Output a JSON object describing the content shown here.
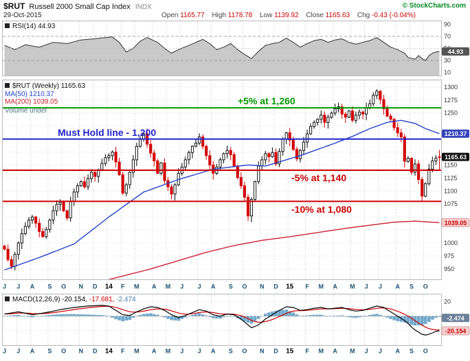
{
  "header": {
    "symbol": "$RUT",
    "name": "Russell 2000 Small Cap Index",
    "exchange": "INDX",
    "copyright": "© StockCharts.com",
    "date": "29-Oct-2015",
    "open_label": "Open",
    "open": "1165.77",
    "high_label": "High",
    "high": "1178.78",
    "low_label": "Low",
    "low": "1139.92",
    "close_label": "Close",
    "close": "1165.63",
    "chg_label": "Chg",
    "chg": "-0.43 (-0.04%)"
  },
  "legends": {
    "rsi": "RSI(14) 44.93",
    "price": "$RUT (Weekly) 1165.63",
    "ma50": "MA(50) 1210.37",
    "ma200": "MA(200) 1039.05",
    "volume": "Volume undef",
    "macd": "MACD(12,26,9)",
    "macd_val": "-20.154,",
    "signal_val": "-17.681,",
    "hist_val": "-2.474"
  },
  "annotations": {
    "plus5": "+5% at 1,260",
    "musthold": "Must Hold line - 1,200",
    "minus5": "-5% at 1,140",
    "minus10": "-10% at 1,080"
  },
  "colors": {
    "up": "#000000",
    "down": "#d40000",
    "ma50": "#2244cc",
    "ma200": "#cc2233",
    "rsi_fill": "#c9c9c9",
    "rsi_line": "#333333",
    "hist": "#6fa8cc",
    "macd_line": "#000000",
    "signal_line": "#cc0000",
    "grid": "#d4d4d4",
    "month_label": "#1a5276"
  },
  "axis": {
    "price_ticks": [
      1300,
      1275,
      1250,
      1150,
      1125,
      1100,
      1075,
      1000,
      975,
      950
    ],
    "price_grid": [
      950,
      975,
      1000,
      1025,
      1050,
      1075,
      1100,
      1125,
      1150,
      1175,
      1200,
      1225,
      1250,
      1275,
      1300
    ],
    "price_badges": [
      {
        "label": "1210.37",
        "value": 1210.37,
        "bg": "#3344bb",
        "fg": "#ffffff"
      },
      {
        "label": "1165.63",
        "value": 1165.63,
        "bg": "#111111",
        "fg": "#ffffff"
      },
      {
        "label": "1039.05",
        "value": 1039.05,
        "bg": "#f8d0d0",
        "fg": "#cc0000",
        "stroke": "#cc8888"
      }
    ],
    "rsi_ticks": [
      90,
      70,
      50,
      30,
      10
    ],
    "rsi_badge": {
      "label": "44.93",
      "value": 44.93,
      "bg": "#555555",
      "fg": "#ffffff"
    },
    "macd_ticks": [
      20,
      0,
      -20
    ],
    "macd_badges": [
      {
        "label": "-2.474",
        "value": -2.474,
        "bg": "#6b8099",
        "fg": "#ffffff"
      },
      {
        "label": "-20.154",
        "value": -20.154,
        "bg": "#f8d0d0",
        "fg": "#cc0000",
        "stroke": "#cc8888"
      }
    ]
  },
  "months": [
    {
      "l": "J",
      "i": 0
    },
    {
      "l": "J",
      "i": 4
    },
    {
      "l": "A",
      "i": 8
    },
    {
      "l": "S",
      "i": 13
    },
    {
      "l": "O",
      "i": 17
    },
    {
      "l": "N",
      "i": 22
    },
    {
      "l": "D",
      "i": 26
    },
    {
      "l": "14",
      "i": 30,
      "y": 1
    },
    {
      "l": "F",
      "i": 34
    },
    {
      "l": "M",
      "i": 38
    },
    {
      "l": "A",
      "i": 43
    },
    {
      "l": "M",
      "i": 47
    },
    {
      "l": "J",
      "i": 51
    },
    {
      "l": "J",
      "i": 56
    },
    {
      "l": "A",
      "i": 60
    },
    {
      "l": "S",
      "i": 65
    },
    {
      "l": "O",
      "i": 69
    },
    {
      "l": "N",
      "i": 74
    },
    {
      "l": "D",
      "i": 78
    },
    {
      "l": "15",
      "i": 82,
      "y": 1
    },
    {
      "l": "F",
      "i": 87
    },
    {
      "l": "M",
      "i": 91
    },
    {
      "l": "A",
      "i": 95
    },
    {
      "l": "M",
      "i": 100
    },
    {
      "l": "J",
      "i": 104
    },
    {
      "l": "J",
      "i": 108
    },
    {
      "l": "A",
      "i": 113
    },
    {
      "l": "S",
      "i": 117
    },
    {
      "l": "O",
      "i": 121
    }
  ],
  "chart_data": [
    {
      "type": "line",
      "title": "RSI(14)",
      "panel": "rsi",
      "ylim": [
        5,
        95
      ],
      "last": 44.93,
      "levels": [
        70,
        50,
        30
      ],
      "points": [
        [
          0,
          55
        ],
        [
          3,
          48
        ],
        [
          6,
          56
        ],
        [
          10,
          52
        ],
        [
          14,
          60
        ],
        [
          18,
          58
        ],
        [
          22,
          64
        ],
        [
          26,
          66
        ],
        [
          29,
          68
        ],
        [
          31,
          69
        ],
        [
          33,
          60
        ],
        [
          35,
          44
        ],
        [
          37,
          50
        ],
        [
          39,
          62
        ],
        [
          41,
          68
        ],
        [
          44,
          60
        ],
        [
          46,
          50
        ],
        [
          48,
          42
        ],
        [
          50,
          48
        ],
        [
          53,
          55
        ],
        [
          55,
          60
        ],
        [
          57,
          65
        ],
        [
          59,
          58
        ],
        [
          61,
          48
        ],
        [
          63,
          52
        ],
        [
          65,
          58
        ],
        [
          67,
          48
        ],
        [
          69,
          40
        ],
        [
          71,
          33
        ],
        [
          73,
          45
        ],
        [
          75,
          55
        ],
        [
          77,
          58
        ],
        [
          79,
          60
        ],
        [
          81,
          67
        ],
        [
          83,
          60
        ],
        [
          85,
          52
        ],
        [
          87,
          58
        ],
        [
          89,
          63
        ],
        [
          91,
          65
        ],
        [
          93,
          60
        ],
        [
          95,
          64
        ],
        [
          97,
          66
        ],
        [
          99,
          60
        ],
        [
          101,
          57
        ],
        [
          103,
          60
        ],
        [
          105,
          63
        ],
        [
          107,
          68
        ],
        [
          109,
          60
        ],
        [
          111,
          52
        ],
        [
          113,
          48
        ],
        [
          115,
          42
        ],
        [
          116,
          35
        ],
        [
          118,
          32
        ],
        [
          119,
          38
        ],
        [
          120,
          33
        ],
        [
          121,
          30
        ],
        [
          122,
          38
        ],
        [
          123,
          42
        ],
        [
          124,
          44
        ],
        [
          125,
          44.93
        ]
      ]
    },
    {
      "type": "candlestick",
      "title": "$RUT (Weekly)",
      "panel": "price",
      "ylim": [
        930,
        1313
      ],
      "closes": [
        988,
        968,
        955,
        978,
        1000,
        1018,
        1032,
        1044,
        1050,
        1038,
        1022,
        1012,
        1026,
        1044,
        1062,
        1074,
        1078,
        1062,
        1048,
        1080,
        1098,
        1110,
        1118,
        1108,
        1124,
        1136,
        1128,
        1141,
        1153,
        1164,
        1168,
        1175,
        1156,
        1131,
        1096,
        1112,
        1136,
        1160,
        1186,
        1200,
        1210,
        1190,
        1173,
        1158,
        1134,
        1154,
        1120,
        1108,
        1094,
        1112,
        1134,
        1146,
        1160,
        1174,
        1186,
        1192,
        1204,
        1186,
        1168,
        1150,
        1134,
        1146,
        1160,
        1172,
        1178,
        1170,
        1148,
        1126,
        1110,
        1088,
        1052,
        1084,
        1118,
        1148,
        1160,
        1172,
        1166,
        1174,
        1152,
        1176,
        1200,
        1212,
        1198,
        1180,
        1162,
        1178,
        1194,
        1210,
        1224,
        1232,
        1238,
        1246,
        1232,
        1242,
        1250,
        1258,
        1262,
        1248,
        1242,
        1254,
        1236,
        1246,
        1252,
        1248,
        1260,
        1268,
        1284,
        1292,
        1276,
        1258,
        1244,
        1238,
        1222,
        1212,
        1204,
        1157,
        1163,
        1136,
        1152,
        1122,
        1090,
        1114,
        1142,
        1158,
        1163,
        1165.63
      ],
      "last_bar": {
        "open": 1165.77,
        "high": 1178.78,
        "low": 1139.92,
        "close": 1165.63
      },
      "ma50": [
        [
          0,
          948
        ],
        [
          10,
          972
        ],
        [
          20,
          998
        ],
        [
          30,
          1050
        ],
        [
          40,
          1098
        ],
        [
          50,
          1122
        ],
        [
          60,
          1142
        ],
        [
          70,
          1150
        ],
        [
          75,
          1148
        ],
        [
          80,
          1158
        ],
        [
          85,
          1168
        ],
        [
          90,
          1180
        ],
        [
          95,
          1192
        ],
        [
          100,
          1205
        ],
        [
          105,
          1220
        ],
        [
          110,
          1232
        ],
        [
          114,
          1236
        ],
        [
          118,
          1230
        ],
        [
          121,
          1220
        ],
        [
          125,
          1210.37
        ]
      ],
      "ma200": [
        [
          28,
          926
        ],
        [
          35,
          938
        ],
        [
          42,
          950
        ],
        [
          50,
          966
        ],
        [
          58,
          982
        ],
        [
          66,
          995
        ],
        [
          74,
          1005
        ],
        [
          82,
          1012
        ],
        [
          90,
          1020
        ],
        [
          98,
          1028
        ],
        [
          106,
          1035
        ],
        [
          112,
          1040
        ],
        [
          118,
          1042
        ],
        [
          125,
          1039.05
        ]
      ],
      "hlines": [
        {
          "value": 1260,
          "color": "#009900"
        },
        {
          "value": 1200,
          "color": "#2222cc"
        },
        {
          "value": 1140,
          "color": "#cc0000"
        },
        {
          "value": 1080,
          "color": "#cc0000"
        }
      ]
    },
    {
      "type": "macd",
      "title": "MACD(12,26,9)",
      "panel": "macd",
      "ylim": [
        -40,
        30
      ],
      "last": {
        "macd": -20.154,
        "signal": -17.681,
        "hist": -2.474
      },
      "macd_points": [
        [
          0,
          3
        ],
        [
          4,
          6
        ],
        [
          8,
          2
        ],
        [
          12,
          5
        ],
        [
          16,
          9
        ],
        [
          20,
          12
        ],
        [
          24,
          14
        ],
        [
          28,
          15
        ],
        [
          30,
          14
        ],
        [
          32,
          8
        ],
        [
          34,
          2
        ],
        [
          36,
          1
        ],
        [
          38,
          6
        ],
        [
          40,
          10
        ],
        [
          42,
          13
        ],
        [
          44,
          12
        ],
        [
          46,
          8
        ],
        [
          48,
          2
        ],
        [
          50,
          -2
        ],
        [
          52,
          1
        ],
        [
          54,
          5
        ],
        [
          56,
          9
        ],
        [
          58,
          7
        ],
        [
          60,
          2
        ],
        [
          62,
          0
        ],
        [
          64,
          3
        ],
        [
          66,
          2
        ],
        [
          68,
          -4
        ],
        [
          70,
          -12
        ],
        [
          71,
          -16
        ],
        [
          73,
          -12
        ],
        [
          75,
          -4
        ],
        [
          77,
          2
        ],
        [
          79,
          8
        ],
        [
          81,
          13
        ],
        [
          83,
          12
        ],
        [
          85,
          8
        ],
        [
          87,
          9
        ],
        [
          89,
          11
        ],
        [
          91,
          12
        ],
        [
          93,
          10
        ],
        [
          95,
          11
        ],
        [
          97,
          12
        ],
        [
          99,
          9
        ],
        [
          101,
          7
        ],
        [
          103,
          8
        ],
        [
          105,
          11
        ],
        [
          107,
          14
        ],
        [
          109,
          12
        ],
        [
          111,
          6
        ],
        [
          113,
          0
        ],
        [
          115,
          -6
        ],
        [
          116,
          -10
        ],
        [
          117,
          -15
        ],
        [
          118,
          -19
        ],
        [
          119,
          -22
        ],
        [
          120,
          -25
        ],
        [
          121,
          -26
        ],
        [
          122,
          -25
        ],
        [
          123,
          -23
        ],
        [
          124,
          -21
        ],
        [
          125,
          -20.154
        ]
      ]
    }
  ]
}
